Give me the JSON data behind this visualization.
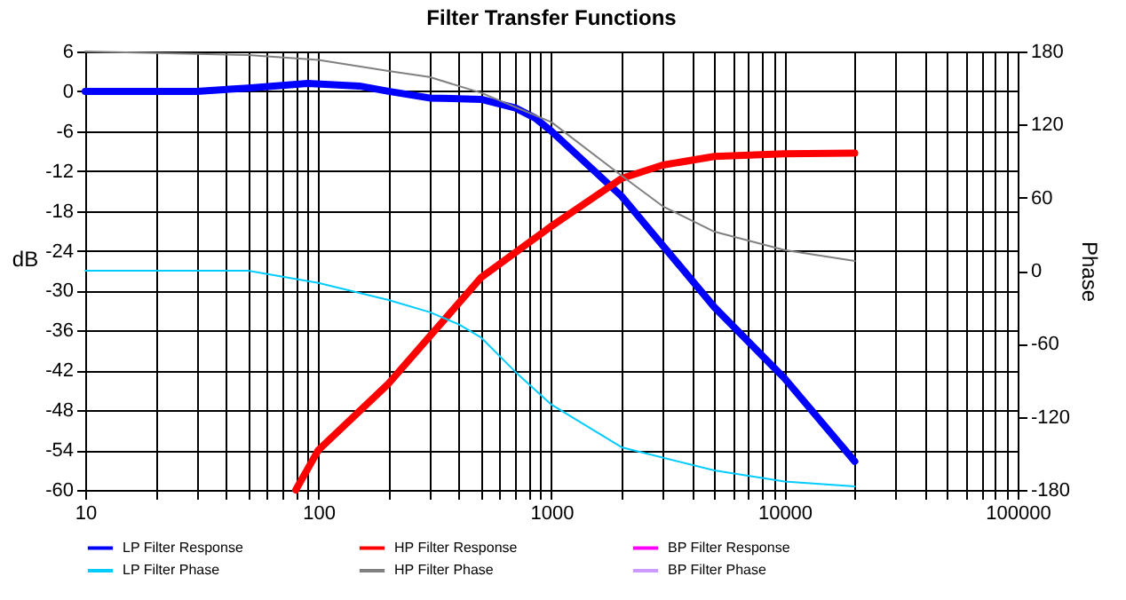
{
  "chart_data": {
    "type": "line",
    "title": "Filter Transfer  Functions",
    "ylabel": "dB",
    "y2label": "Phase",
    "log": "x",
    "grid": true,
    "legend": "bottom",
    "xlim": [
      10,
      100000
    ],
    "xticks": [
      10,
      {
        "value": 20,
        "label": null
      },
      {
        "value": 30,
        "label": null
      },
      {
        "value": 40,
        "label": null
      },
      {
        "value": 50,
        "label": null
      },
      {
        "value": 60,
        "label": null
      },
      {
        "value": 70,
        "label": null
      },
      {
        "value": 80,
        "label": null
      },
      {
        "value": 90,
        "label": null
      },
      100,
      {
        "value": 200,
        "label": null
      },
      {
        "value": 300,
        "label": null
      },
      {
        "value": 400,
        "label": null
      },
      {
        "value": 500,
        "label": null
      },
      {
        "value": 600,
        "label": null
      },
      {
        "value": 700,
        "label": null
      },
      {
        "value": 800,
        "label": null
      },
      {
        "value": 900,
        "label": null
      },
      1000,
      {
        "value": 2000,
        "label": null
      },
      {
        "value": 3000,
        "label": null
      },
      {
        "value": 4000,
        "label": null
      },
      {
        "value": 5000,
        "label": null
      },
      {
        "value": 6000,
        "label": null
      },
      {
        "value": 7000,
        "label": null
      },
      {
        "value": 8000,
        "label": null
      },
      {
        "value": 9000,
        "label": null
      },
      10000,
      {
        "value": 20000,
        "label": null
      },
      {
        "value": 30000,
        "label": null
      },
      {
        "value": 40000,
        "label": null
      },
      {
        "value": 50000,
        "label": null
      },
      {
        "value": 60000,
        "label": null
      },
      {
        "value": 70000,
        "label": null
      },
      {
        "value": 80000,
        "label": null
      },
      {
        "value": 90000,
        "label": null
      },
      100000
    ],
    "ylim": [
      -60,
      6
    ],
    "yticks": [
      -60,
      -54,
      -48,
      -42,
      -36,
      -30,
      -24,
      -18,
      -12,
      -6,
      0,
      6
    ],
    "y2lim": [
      -180,
      180
    ],
    "y2ticks": [
      -180,
      -120,
      -60,
      0,
      60,
      120,
      180
    ],
    "series": [
      {
        "name": "LP Filter Response",
        "color": "#0000ff",
        "x": [
          10,
          30,
          50,
          90,
          150,
          200,
          300,
          500,
          700,
          850,
          1000,
          2000,
          5000,
          10000,
          20000
        ],
        "values": [
          0,
          0,
          0.5,
          1.2,
          0.8,
          0,
          -1,
          -1.2,
          -2.5,
          -4,
          -6,
          -15.8,
          -32.5,
          -43.2,
          -55.7
        ]
      },
      {
        "name": "HP Filter Response",
        "color": "#ff0000",
        "x": [
          80,
          100,
          200,
          300,
          500,
          1000,
          2000,
          3000,
          5000,
          10000,
          20000
        ],
        "values": [
          -60,
          -54,
          -44,
          -36.9,
          -28,
          -20.3,
          -13.1,
          -11.1,
          -9.8,
          -9.4,
          -9.3
        ]
      },
      {
        "name": "BP Filter Response",
        "color": "#ff00ff"
      },
      {
        "name": "LP Filter Phase",
        "color": "#00ccff",
        "axis": "y2",
        "x": [
          10,
          50,
          100,
          200,
          300,
          400,
          500,
          700,
          1000,
          2000,
          5000,
          10000,
          20000
        ],
        "values": [
          0,
          0,
          -10,
          -24,
          -34,
          -44,
          -55,
          -83,
          -110,
          -145,
          -164,
          -173,
          -177
        ]
      },
      {
        "name": "HP Filter Phase",
        "color": "#808080",
        "axis": "y2",
        "x": [
          10,
          50,
          100,
          200,
          300,
          500,
          1000,
          2000,
          3000,
          5000,
          10000,
          20000
        ],
        "values": [
          180,
          177,
          173,
          164,
          159,
          146,
          122,
          78,
          53,
          32,
          17,
          8
        ]
      },
      {
        "name": "BP Filter Phase",
        "color": "#cc99ff",
        "axis": "y2"
      }
    ]
  }
}
